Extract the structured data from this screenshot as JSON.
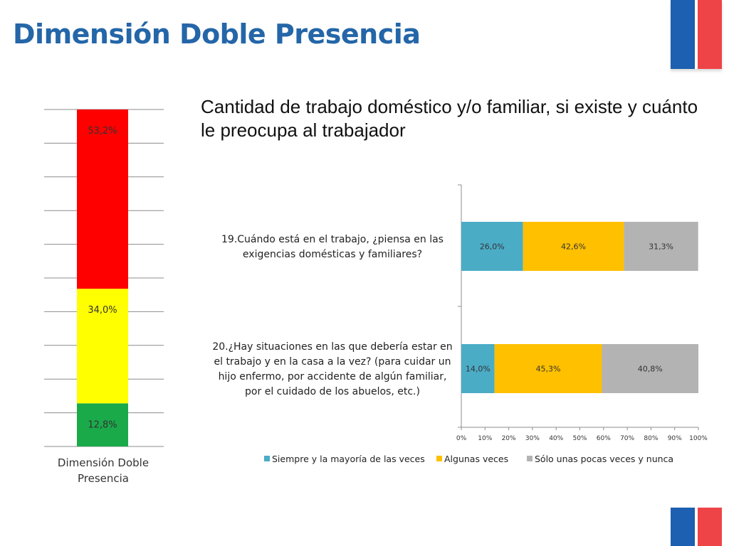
{
  "slide": {
    "title": "Dimensión Doble Presencia",
    "subtitle": "Cantidad de trabajo doméstico y/o familiar, si existe y cuánto le preocupa al trabajador"
  },
  "colors": {
    "title": "#2466a8",
    "flag_blue": "#1d5fb0",
    "flag_red": "#ee4447"
  },
  "chart_data": [
    {
      "type": "bar",
      "stacked": true,
      "orientation": "vertical",
      "categories": [
        "Dimensión Doble Presencia"
      ],
      "series": [
        {
          "value": 12.8,
          "label": "12,8%",
          "color": "#1aaa4a"
        },
        {
          "value": 34.0,
          "label": "34,0%",
          "color": "#ffff00"
        },
        {
          "value": 53.2,
          "label": "53,2%",
          "color": "#ff0000"
        }
      ],
      "ylim": [
        0,
        100
      ],
      "grid": true
    },
    {
      "type": "bar",
      "stacked": true,
      "orientation": "horizontal",
      "categories": [
        "19.Cuándo está en el trabajo, ¿piensa en las exigencias domésticas y familiares?",
        "20.¿Hay situaciones en las que debería estar en el trabajo y en la casa a la vez? (para cuidar un hijo enfermo, por accidente de algún familiar, por el cuidado de los abuelos, etc.)"
      ],
      "series": [
        {
          "name": "Siempre y la mayoría de las veces",
          "color": "#4bacc6",
          "values": [
            26.0,
            14.0
          ],
          "labels": [
            "26,0%",
            "14,0%"
          ]
        },
        {
          "name": "Algunas veces",
          "color": "#ffc000",
          "values": [
            42.6,
            45.3
          ],
          "labels": [
            "42,6%",
            "45,3%"
          ]
        },
        {
          "name": "Sólo unas pocas veces y nunca",
          "color": "#b3b3b3",
          "values": [
            31.3,
            40.8
          ],
          "labels": [
            "31,3%",
            "40,8%"
          ]
        }
      ],
      "xlim": [
        0,
        100
      ],
      "xticks": [
        "0%",
        "10%",
        "20%",
        "30%",
        "40%",
        "50%",
        "60%",
        "70%",
        "80%",
        "90%",
        "100%"
      ],
      "legend": "bottom",
      "grid": false
    }
  ]
}
